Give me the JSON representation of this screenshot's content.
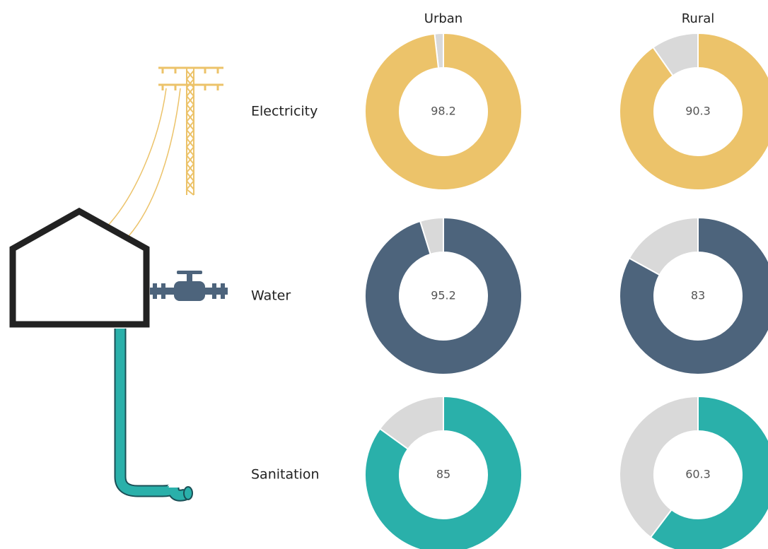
{
  "chart_data": {
    "type": "donut-grid",
    "categories": [
      "Urban",
      "Rural"
    ],
    "series": [
      {
        "name": "Electricity",
        "color": "#ecc36a",
        "values": [
          98.2,
          90.3
        ]
      },
      {
        "name": "Water",
        "color": "#4d647c",
        "values": [
          95.2,
          83.0
        ]
      },
      {
        "name": "Sanitation",
        "color": "#2ab0aa",
        "values": [
          85.0,
          60.3
        ]
      }
    ],
    "ylim": [
      0,
      100
    ],
    "remainder_color": "#d9d9d9"
  }
}
